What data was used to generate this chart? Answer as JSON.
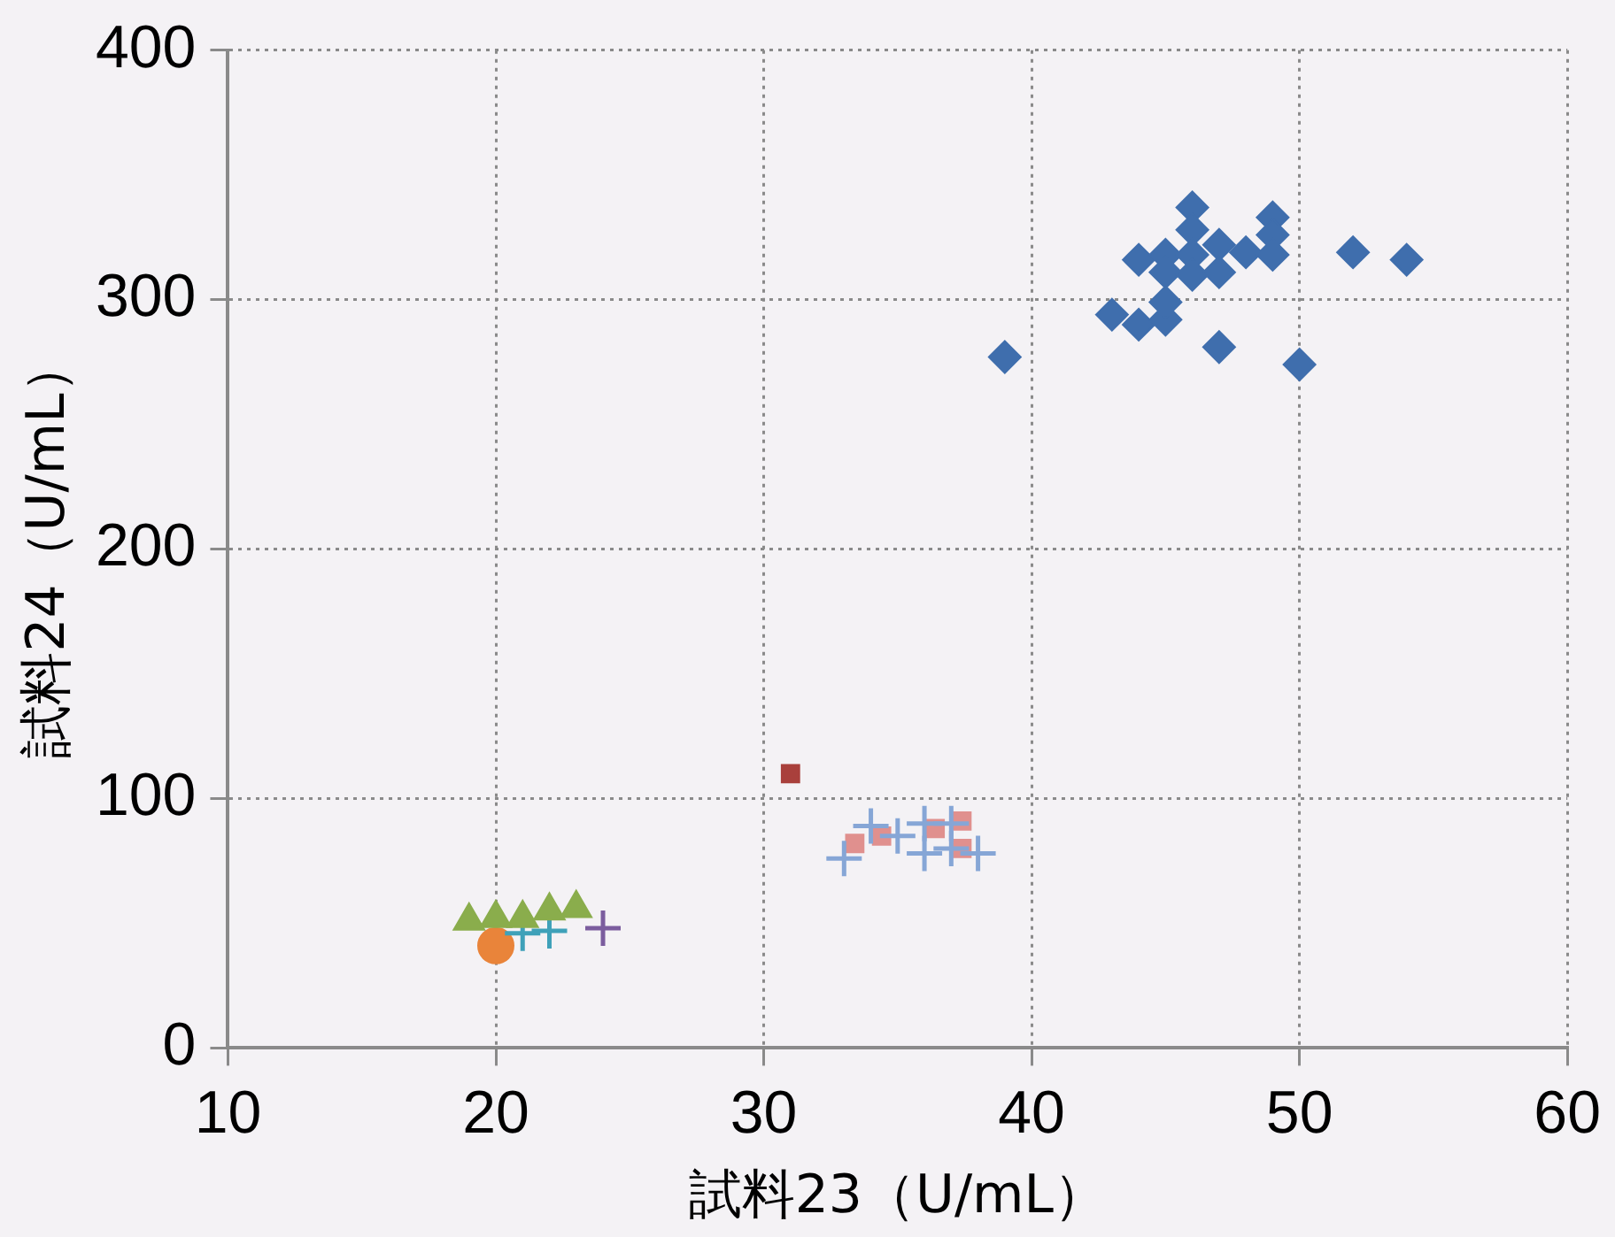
{
  "chart_data": {
    "type": "scatter",
    "xlabel": "試料23（U/mL）",
    "ylabel": "試料24（U/mL）",
    "xlim": [
      10,
      60
    ],
    "xticks": [
      10,
      20,
      30,
      40,
      50,
      60
    ],
    "ylim": [
      0,
      400
    ],
    "yticks": [
      0,
      100,
      200,
      300,
      400
    ],
    "grid": true,
    "legend": false,
    "series": [
      {
        "color": "#3f6ead",
        "marker": "diamond",
        "x": [
          39,
          43,
          44,
          45,
          45,
          44,
          45,
          45,
          46,
          46,
          46,
          46,
          47,
          47,
          47,
          48,
          49,
          49,
          49,
          50,
          52,
          54
        ],
        "values": [
          277,
          294,
          290,
          292,
          299,
          316,
          318,
          311,
          337,
          328,
          318,
          310,
          322,
          311,
          281,
          319,
          333,
          326,
          318,
          274,
          319,
          316
        ]
      },
      {
        "color": "#a9403c",
        "marker": "square",
        "x": [
          31
        ],
        "values": [
          110
        ]
      },
      {
        "color": "#8aad4c",
        "marker": "triangle",
        "x": [
          19,
          20,
          21,
          22,
          23
        ],
        "values": [
          51,
          52,
          52,
          55,
          56
        ]
      },
      {
        "color": "#7b5d9e",
        "marker": "cross",
        "x": [
          24
        ],
        "values": [
          48
        ]
      },
      {
        "color": "#3fa1b9",
        "marker": "cross",
        "x": [
          21,
          22
        ],
        "values": [
          46,
          47
        ]
      },
      {
        "color": "#e9843a",
        "marker": "circle",
        "x": [
          20
        ],
        "values": [
          41
        ]
      },
      {
        "color": "#86a6d6",
        "marker": "cross",
        "x": [
          33,
          34,
          35,
          36,
          36,
          37,
          37,
          38
        ],
        "values": [
          76,
          89,
          85,
          90,
          78,
          90,
          80,
          78
        ]
      },
      {
        "color": "#e0908e",
        "marker": "square",
        "x": [
          33.4,
          34.4,
          36.4,
          37.4,
          37.4
        ],
        "values": [
          82,
          85,
          88,
          91,
          80
        ]
      }
    ]
  }
}
